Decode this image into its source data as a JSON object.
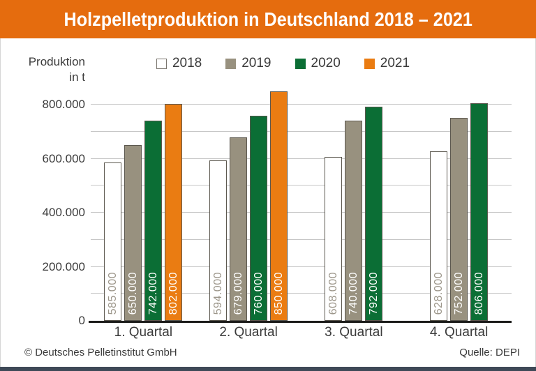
{
  "header": {
    "title": "Holzpelletproduktion in Deutschland 2018 – 2021",
    "background_color": "#e56c0e",
    "text_color": "#ffffff"
  },
  "axis": {
    "label_line1": "Produktion",
    "label_line2": "in t",
    "ticks": [
      {
        "value": 800000,
        "label": "800.000"
      },
      {
        "value": 600000,
        "label": "600.000"
      },
      {
        "value": 400000,
        "label": "400.000"
      },
      {
        "value": 200000,
        "label": "200.000"
      },
      {
        "value": 0,
        "label": "0"
      }
    ]
  },
  "chart_data": {
    "type": "bar",
    "title": "Holzpelletproduktion in Deutschland 2018 – 2021",
    "ylabel": "Produktion in t",
    "xlabel": "",
    "categories": [
      "1. Quartal",
      "2. Quartal",
      "3. Quartal",
      "4. Quartal"
    ],
    "series": [
      {
        "name": "2018",
        "color": "#ffffff",
        "swatch_border": "#7a766e",
        "label_color": "#9c968a",
        "values": [
          585000,
          594000,
          608000,
          628000
        ],
        "labels": [
          "585.000",
          "594.000",
          "608.000",
          "628.000"
        ]
      },
      {
        "name": "2019",
        "color": "#98917f",
        "swatch_border": "#98917f",
        "label_color": "#ffffff",
        "values": [
          650000,
          679000,
          740000,
          752000
        ],
        "labels": [
          "650.000",
          "679.000",
          "740.000",
          "752.000"
        ]
      },
      {
        "name": "2020",
        "color": "#0b6e35",
        "swatch_border": "#0b6e35",
        "label_color": "#ffffff",
        "values": [
          742000,
          760000,
          792000,
          806000
        ],
        "labels": [
          "742.000",
          "760.000",
          "792.000",
          "806.000"
        ]
      },
      {
        "name": "2021",
        "color": "#ea7c12",
        "swatch_border": "#ea7c12",
        "label_color": "#ffffff",
        "values": [
          802000,
          850000,
          null,
          null
        ],
        "labels": [
          "802.000",
          "850.000",
          null,
          null
        ]
      }
    ],
    "ylim": [
      0,
      870000
    ],
    "grid_step": 100000,
    "grid_max": 800000,
    "grid_on": true,
    "legend_position": "top-center",
    "gridline_color": "#c6c6c6",
    "axis_line_color": "#1c1c1a"
  },
  "footer": {
    "left": "© Deutsches Pelletinstitut GmbH",
    "right": "Quelle: DEPI",
    "accent_bar_color": "#3e4957"
  }
}
